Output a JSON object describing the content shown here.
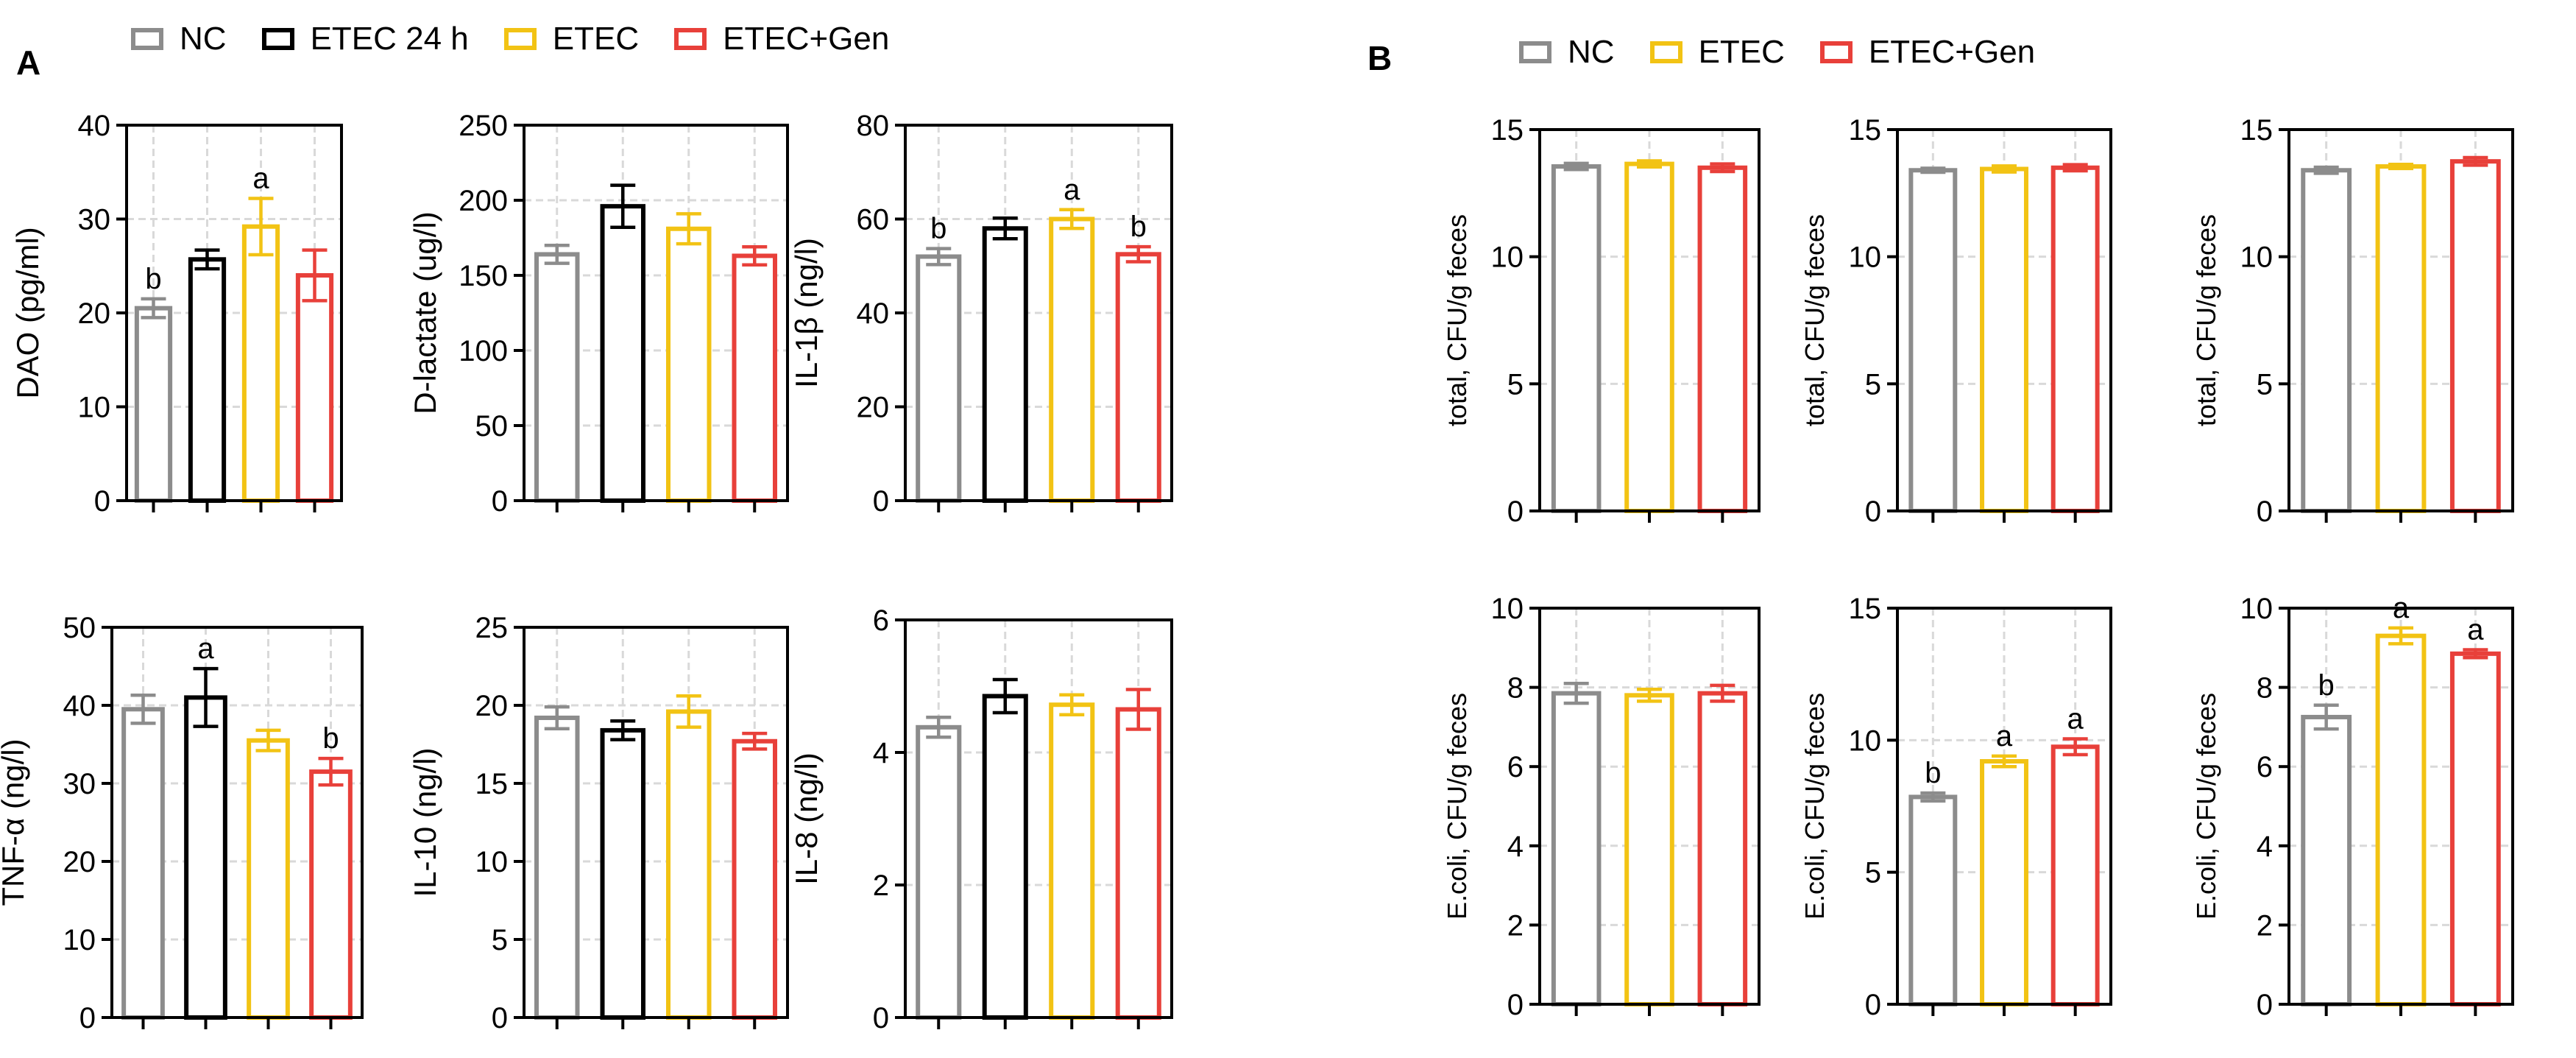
{
  "panels": {
    "A": {
      "letter": "A",
      "legend": [
        {
          "label": "NC",
          "color": "#8c8c8c"
        },
        {
          "label": "ETEC 24 h",
          "color": "#000000"
        },
        {
          "label": "ETEC",
          "color": "#f2c314"
        },
        {
          "label": "ETEC+Gen",
          "color": "#e8403a"
        }
      ]
    },
    "B": {
      "letter": "B",
      "legend": [
        {
          "label": "NC",
          "color": "#8c8c8c"
        },
        {
          "label": "ETEC",
          "color": "#f2c314"
        },
        {
          "label": "ETEC+Gen",
          "color": "#e8403a"
        }
      ]
    }
  },
  "chart_data": [
    {
      "id": "dao",
      "type": "bar",
      "ylabel": "DAO (pg/ml)",
      "ylim": [
        0,
        40
      ],
      "yticks": [
        0,
        10,
        20,
        30,
        40
      ],
      "grid": true,
      "categories": [
        "NC",
        "ETEC 24 h",
        "ETEC",
        "ETEC+Gen"
      ],
      "values": [
        20.5,
        25.7,
        29.2,
        24.0
      ],
      "errors": [
        1.0,
        1.0,
        3.0,
        2.7
      ],
      "letters": [
        "b",
        "",
        "a",
        ""
      ]
    },
    {
      "id": "d-lactate",
      "type": "bar",
      "ylabel": "D-lactate (ug/l)",
      "ylim": [
        0,
        250
      ],
      "yticks": [
        0,
        50,
        100,
        150,
        200,
        250
      ],
      "grid": true,
      "categories": [
        "NC",
        "ETEC 24 h",
        "ETEC",
        "ETEC+Gen"
      ],
      "values": [
        164,
        196,
        181,
        163
      ],
      "errors": [
        6,
        14,
        10,
        6
      ],
      "letters": [
        "",
        "",
        "",
        ""
      ]
    },
    {
      "id": "il-1b",
      "type": "bar",
      "ylabel": "IL-1β (ng/l)",
      "ylim": [
        0,
        80
      ],
      "yticks": [
        0,
        20,
        40,
        60,
        80
      ],
      "grid": true,
      "categories": [
        "NC",
        "ETEC 24 h",
        "ETEC",
        "ETEC+Gen"
      ],
      "values": [
        52,
        58,
        60,
        52.5
      ],
      "errors": [
        1.7,
        2.2,
        2.0,
        1.6
      ],
      "letters": [
        "b",
        "",
        "a",
        "b"
      ]
    },
    {
      "id": "tnf-a",
      "type": "bar",
      "ylabel": "TNF-α (ng/l)",
      "ylim": [
        0,
        50
      ],
      "yticks": [
        0,
        10,
        20,
        30,
        40,
        50
      ],
      "grid": true,
      "categories": [
        "NC",
        "ETEC 24 h",
        "ETEC",
        "ETEC+Gen"
      ],
      "values": [
        39.5,
        41.0,
        35.5,
        31.5
      ],
      "errors": [
        1.8,
        3.7,
        1.3,
        1.7
      ],
      "letters": [
        "",
        "a",
        "",
        "b"
      ]
    },
    {
      "id": "il-10",
      "type": "bar",
      "ylabel": "IL-10 (ng/l)",
      "ylim": [
        0,
        25
      ],
      "yticks": [
        0,
        5,
        10,
        15,
        20,
        25
      ],
      "grid": true,
      "categories": [
        "NC",
        "ETEC 24 h",
        "ETEC",
        "ETEC+Gen"
      ],
      "values": [
        19.2,
        18.4,
        19.6,
        17.7
      ],
      "errors": [
        0.7,
        0.6,
        1.0,
        0.5
      ],
      "letters": [
        "",
        "",
        "",
        ""
      ]
    },
    {
      "id": "il-8",
      "type": "bar",
      "ylabel": "IL-8 (ng/l)",
      "ylim": [
        0,
        6
      ],
      "yticks": [
        0,
        2,
        4,
        6
      ],
      "grid": true,
      "categories": [
        "NC",
        "ETEC 24 h",
        "ETEC",
        "ETEC+Gen"
      ],
      "values": [
        4.38,
        4.85,
        4.72,
        4.65
      ],
      "errors": [
        0.15,
        0.25,
        0.15,
        0.3
      ],
      "letters": [
        "",
        "",
        "",
        ""
      ]
    },
    {
      "id": "total-1",
      "type": "bar",
      "ylabel": "total, CFU/g feces",
      "ylim": [
        0,
        15
      ],
      "yticks": [
        0,
        5,
        10,
        15
      ],
      "grid": true,
      "categories": [
        "NC",
        "ETEC",
        "ETEC+Gen"
      ],
      "values": [
        13.55,
        13.65,
        13.5
      ],
      "errors": [
        0.12,
        0.12,
        0.15
      ],
      "letters": [
        "",
        "",
        ""
      ]
    },
    {
      "id": "total-2",
      "type": "bar",
      "ylabel": "total, CFU/g feces",
      "ylim": [
        0,
        15
      ],
      "yticks": [
        0,
        5,
        10,
        15
      ],
      "grid": true,
      "categories": [
        "NC",
        "ETEC",
        "ETEC+Gen"
      ],
      "values": [
        13.4,
        13.45,
        13.5
      ],
      "errors": [
        0.08,
        0.12,
        0.12
      ],
      "letters": [
        "",
        "",
        ""
      ]
    },
    {
      "id": "total-3",
      "type": "bar",
      "ylabel": "total, CFU/g feces",
      "ylim": [
        0,
        15
      ],
      "yticks": [
        0,
        5,
        10,
        15
      ],
      "grid": true,
      "categories": [
        "NC",
        "ETEC",
        "ETEC+Gen"
      ],
      "values": [
        13.4,
        13.55,
        13.75
      ],
      "errors": [
        0.12,
        0.08,
        0.15
      ],
      "letters": [
        "",
        "",
        ""
      ]
    },
    {
      "id": "ecoli-1",
      "type": "bar",
      "ylabel": "E.coli, CFU/g feces",
      "ylim": [
        0,
        10
      ],
      "yticks": [
        0,
        2,
        4,
        6,
        8,
        10
      ],
      "grid": true,
      "categories": [
        "NC",
        "ETEC",
        "ETEC+Gen"
      ],
      "values": [
        7.85,
        7.8,
        7.85
      ],
      "errors": [
        0.25,
        0.15,
        0.2
      ],
      "letters": [
        "",
        "",
        ""
      ]
    },
    {
      "id": "ecoli-2",
      "type": "bar",
      "ylabel": "E.coli, CFU/g feces",
      "ylim": [
        0,
        15
      ],
      "yticks": [
        0,
        5,
        10,
        15
      ],
      "grid": true,
      "categories": [
        "NC",
        "ETEC",
        "ETEC+Gen"
      ],
      "values": [
        7.85,
        9.2,
        9.75
      ],
      "errors": [
        0.15,
        0.2,
        0.3
      ],
      "letters": [
        "b",
        "a",
        "a"
      ]
    },
    {
      "id": "ecoli-3",
      "type": "bar",
      "ylabel": "E.coli, CFU/g feces",
      "ylim": [
        0,
        10
      ],
      "yticks": [
        0,
        2,
        4,
        6,
        8,
        10
      ],
      "grid": true,
      "categories": [
        "NC",
        "ETEC",
        "ETEC+Gen"
      ],
      "values": [
        7.25,
        9.3,
        8.85
      ],
      "errors": [
        0.3,
        0.2,
        0.1
      ],
      "letters": [
        "b",
        "a",
        "a"
      ]
    }
  ],
  "colors": {
    "NC": "#8c8c8c",
    "ETEC 24 h": "#000000",
    "ETEC": "#f2c314",
    "ETEC+Gen": "#e8403a",
    "grid": "#d9d9d9"
  }
}
